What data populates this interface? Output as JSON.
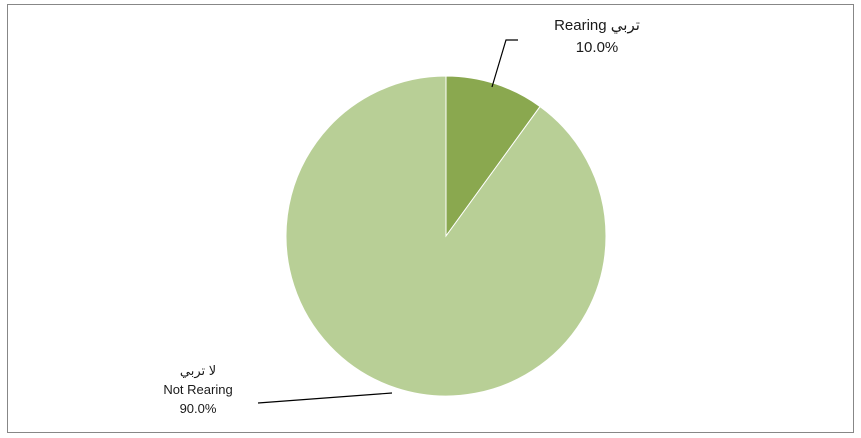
{
  "chart_data": {
    "type": "pie",
    "start_angle_deg": 0,
    "direction": "clockwise",
    "slices": [
      {
        "label_ar": "تربي",
        "label_en": "Rearing",
        "value": 10.0,
        "value_label": "10.0%",
        "color": "#8aa84f"
      },
      {
        "label_ar": "لا تربي",
        "label_en": "Not Rearing",
        "value": 90.0,
        "value_label": "90.0%",
        "color": "#b8cf96"
      }
    ],
    "title": "",
    "legend": "none"
  }
}
